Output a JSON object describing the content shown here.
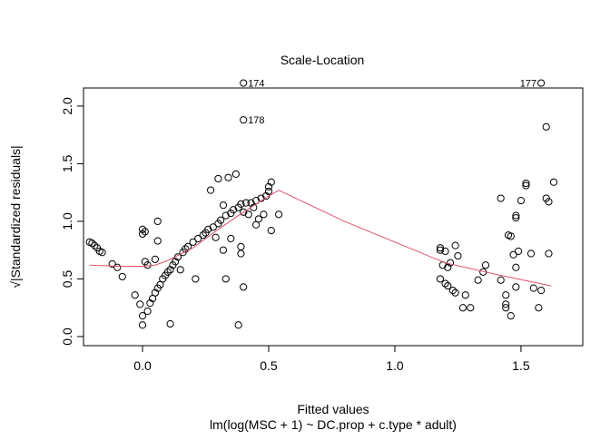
{
  "chart_data": {
    "type": "scatter",
    "title": "Scale-Location",
    "x_label": "Fitted values",
    "y_label": "√|Standardized residuals|",
    "subtitle": "lm(log(MSC + 1) ~ DC.prop + c.type * adult)",
    "xlim": [
      -0.234,
      1.745
    ],
    "ylim": [
      -0.079,
      2.157
    ],
    "xticks": [
      {
        "value": 0,
        "label": "0.0"
      },
      {
        "value": 0.5,
        "label": "0.5"
      },
      {
        "value": 1,
        "label": "1.0"
      },
      {
        "value": 1.5,
        "label": "1.5"
      }
    ],
    "yticks": [
      {
        "value": 0,
        "label": "0.0"
      },
      {
        "value": 0.5,
        "label": "0.5"
      },
      {
        "value": 1,
        "label": "1.0"
      },
      {
        "value": 1.5,
        "label": "1.5"
      },
      {
        "value": 2,
        "label": "2.0"
      }
    ],
    "points": {
      "color": "#000000",
      "x": [
        -0.21,
        -0.2,
        -0.19,
        -0.18,
        -0.17,
        -0.16,
        -0.12,
        -0.1,
        -0.08,
        -0.03,
        -0.01,
        0.0,
        0.0,
        0.0,
        0.0,
        0.01,
        0.01,
        0.02,
        0.02,
        0.03,
        0.04,
        0.05,
        0.06,
        0.06,
        0.05,
        0.06,
        0.07,
        0.08,
        0.09,
        0.1,
        0.11,
        0.12,
        0.13,
        0.14,
        0.15,
        0.16,
        0.17,
        0.18,
        0.2,
        0.11,
        0.21,
        0.22,
        0.24,
        0.25,
        0.26,
        0.27,
        0.28,
        0.29,
        0.3,
        0.3,
        0.31,
        0.32,
        0.32,
        0.33,
        0.33,
        0.34,
        0.35,
        0.35,
        0.36,
        0.37,
        0.38,
        0.38,
        0.39,
        0.39,
        0.39,
        0.4,
        0.4,
        0.4,
        0.4,
        0.41,
        0.42,
        0.43,
        0.44,
        0.45,
        0.45,
        0.46,
        0.47,
        0.48,
        0.49,
        0.5,
        0.5,
        0.51,
        0.51,
        0.54,
        1.18,
        1.18,
        1.18,
        1.19,
        1.2,
        1.2,
        1.21,
        1.21,
        1.22,
        1.23,
        1.24,
        1.24,
        1.25,
        1.27,
        1.28,
        1.3,
        1.33,
        1.35,
        1.36,
        1.42,
        1.42,
        1.44,
        1.44,
        1.44,
        1.45,
        1.46,
        1.46,
        1.47,
        1.48,
        1.48,
        1.48,
        1.48,
        1.49,
        1.5,
        1.52,
        1.52,
        1.54,
        1.55,
        1.57,
        1.58,
        1.58,
        1.6,
        1.6,
        1.61,
        1.61,
        1.63
      ],
      "y": [
        0.82,
        0.81,
        0.79,
        0.77,
        0.74,
        0.73,
        0.63,
        0.6,
        0.52,
        0.36,
        0.28,
        0.18,
        0.1,
        0.93,
        0.89,
        0.91,
        0.65,
        0.22,
        0.62,
        0.29,
        0.33,
        0.67,
        1.0,
        0.83,
        0.38,
        0.42,
        0.45,
        0.5,
        0.53,
        0.56,
        0.58,
        0.62,
        0.65,
        0.69,
        0.58,
        0.73,
        0.76,
        0.78,
        0.82,
        0.11,
        0.5,
        0.85,
        0.88,
        0.9,
        0.93,
        1.27,
        0.95,
        0.86,
        0.98,
        1.37,
        1.01,
        1.14,
        0.75,
        1.05,
        0.5,
        1.38,
        1.07,
        0.85,
        1.1,
        1.41,
        1.12,
        0.1,
        1.15,
        0.78,
        0.72,
        1.08,
        0.43,
        2.2,
        1.88,
        1.16,
        1.06,
        1.16,
        1.12,
        0.97,
        1.18,
        1.02,
        1.2,
        1.06,
        1.22,
        1.26,
        1.3,
        1.34,
        0.92,
        1.06,
        0.77,
        0.75,
        0.5,
        0.62,
        0.74,
        0.46,
        0.6,
        0.44,
        0.64,
        0.4,
        0.79,
        0.38,
        0.7,
        0.25,
        0.36,
        0.25,
        0.49,
        0.56,
        0.62,
        1.2,
        0.49,
        0.25,
        0.36,
        0.28,
        0.88,
        0.87,
        0.18,
        0.71,
        1.05,
        1.03,
        0.6,
        0.43,
        0.74,
        1.18,
        1.33,
        1.31,
        0.72,
        0.42,
        0.25,
        0.4,
        2.2,
        1.82,
        1.2,
        1.17,
        0.72,
        1.34
      ]
    },
    "smooth": {
      "color": "#DF536B",
      "x": [
        -0.21,
        -0.1,
        0.0,
        0.05,
        0.1,
        0.2,
        0.3,
        0.4,
        0.5,
        0.54,
        0.8,
        1.0,
        1.2,
        1.4,
        1.62
      ],
      "y": [
        0.62,
        0.61,
        0.61,
        0.62,
        0.66,
        0.77,
        0.93,
        1.08,
        1.22,
        1.27,
        1.0,
        0.82,
        0.64,
        0.54,
        0.44
      ]
    },
    "annotations": [
      {
        "text": "174",
        "x": 0.4,
        "y": 2.2,
        "side": "right"
      },
      {
        "text": "178",
        "x": 0.4,
        "y": 1.88,
        "side": "right"
      },
      {
        "text": "177",
        "x": 1.58,
        "y": 2.2,
        "side": "left"
      }
    ]
  }
}
